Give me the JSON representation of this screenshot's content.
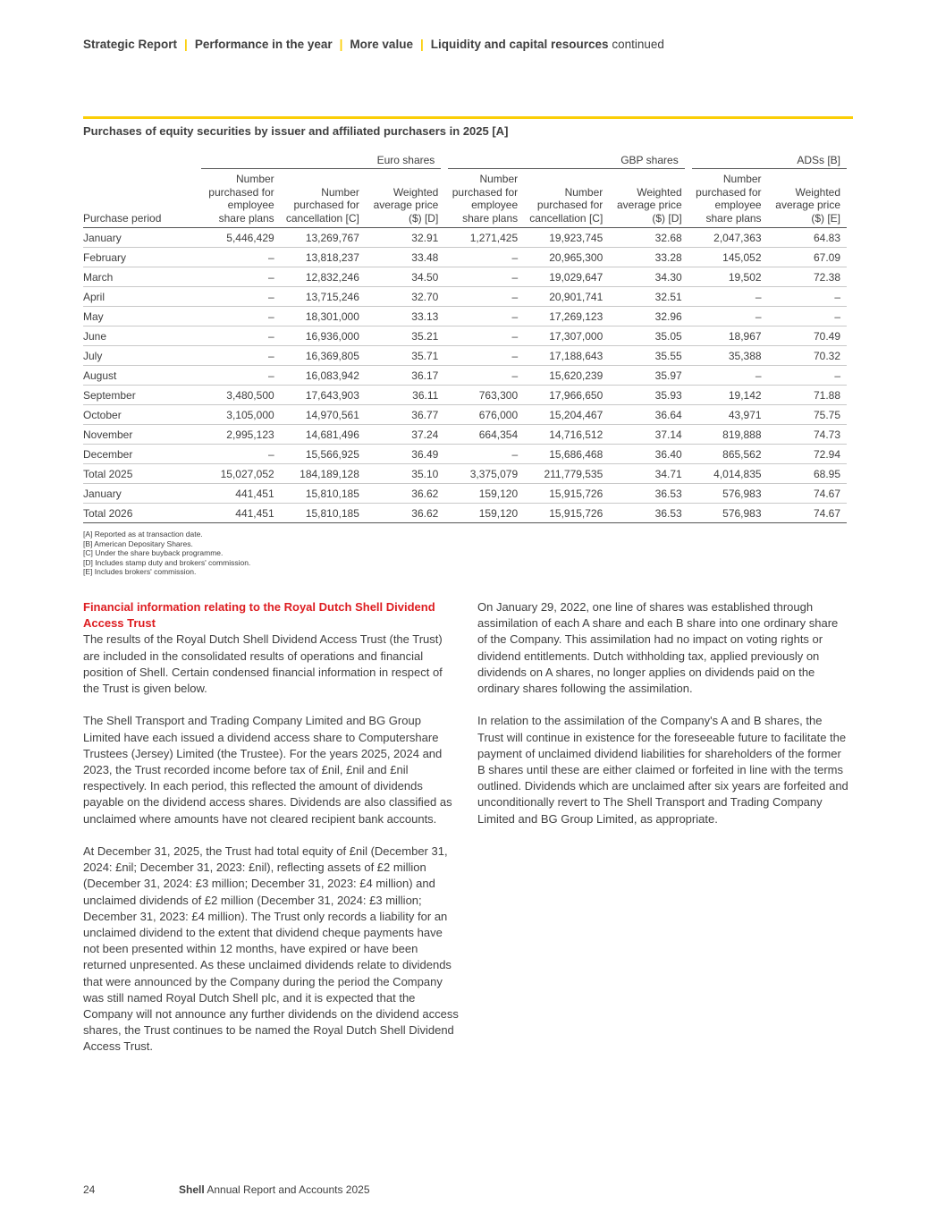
{
  "header": {
    "breadcrumbs": [
      "Strategic Report",
      "Performance in the year",
      "More value",
      "Liquidity and capital resources"
    ],
    "suffix": "continued"
  },
  "accent_color": "#fbce07",
  "table": {
    "title": "Purchases of equity securities by issuer and affiliated purchasers in 2025 [A]",
    "groups": [
      "Euro shares",
      "GBP shares",
      "ADSs [B]"
    ],
    "columns": [
      "Purchase period",
      "Number purchased for employee share plans",
      "Number purchased for cancellation [C]",
      "Weighted average price ($) [D]",
      "Number purchased for employee share plans",
      "Number purchased for cancellation [C]",
      "Weighted average price ($) [D]",
      "Number purchased for employee share plans",
      "Weighted average price ($) [E]"
    ],
    "rows": [
      [
        "January",
        "5,446,429",
        "13,269,767",
        "32.91",
        "1,271,425",
        "19,923,745",
        "32.68",
        "2,047,363",
        "64.83"
      ],
      [
        "February",
        "–",
        "13,818,237",
        "33.48",
        "–",
        "20,965,300",
        "33.28",
        "145,052",
        "67.09"
      ],
      [
        "March",
        "–",
        "12,832,246",
        "34.50",
        "–",
        "19,029,647",
        "34.30",
        "19,502",
        "72.38"
      ],
      [
        "April",
        "–",
        "13,715,246",
        "32.70",
        "–",
        "20,901,741",
        "32.51",
        "–",
        "–"
      ],
      [
        "May",
        "–",
        "18,301,000",
        "33.13",
        "–",
        "17,269,123",
        "32.96",
        "–",
        "–"
      ],
      [
        "June",
        "–",
        "16,936,000",
        "35.21",
        "–",
        "17,307,000",
        "35.05",
        "18,967",
        "70.49"
      ],
      [
        "July",
        "–",
        "16,369,805",
        "35.71",
        "–",
        "17,188,643",
        "35.55",
        "35,388",
        "70.32"
      ],
      [
        "August",
        "–",
        "16,083,942",
        "36.17",
        "–",
        "15,620,239",
        "35.97",
        "–",
        "–"
      ],
      [
        "September",
        "3,480,500",
        "17,643,903",
        "36.11",
        "763,300",
        "17,966,650",
        "35.93",
        "19,142",
        "71.88"
      ],
      [
        "October",
        "3,105,000",
        "14,970,561",
        "36.77",
        "676,000",
        "15,204,467",
        "36.64",
        "43,971",
        "75.75"
      ],
      [
        "November",
        "2,995,123",
        "14,681,496",
        "37.24",
        "664,354",
        "14,716,512",
        "37.14",
        "819,888",
        "74.73"
      ],
      [
        "December",
        "–",
        "15,566,925",
        "36.49",
        "–",
        "15,686,468",
        "36.40",
        "865,562",
        "72.94"
      ],
      [
        "Total 2025",
        "15,027,052",
        "184,189,128",
        "35.10",
        "3,375,079",
        "211,779,535",
        "34.71",
        "4,014,835",
        "68.95"
      ],
      [
        "January",
        "441,451",
        "15,810,185",
        "36.62",
        "159,120",
        "15,915,726",
        "36.53",
        "576,983",
        "74.67"
      ],
      [
        "Total 2026",
        "441,451",
        "15,810,185",
        "36.62",
        "159,120",
        "15,915,726",
        "36.53",
        "576,983",
        "74.67"
      ]
    ],
    "notes": [
      "[A]  Reported as at transaction date.",
      "[B]  American Depositary Shares.",
      "[C]  Under the share buyback programme.",
      "[D]  Includes stamp duty and brokers' commission.",
      "[E]  Includes brokers' commission."
    ]
  },
  "left": {
    "heading": "Financial information relating to the Royal Dutch Shell Dividend Access Trust",
    "paragraphs": [
      "The results of the Royal Dutch Shell Dividend Access Trust (the Trust) are included in the consolidated results of operations and financial position of Shell. Certain condensed financial information in respect of the Trust is given below.",
      "The Shell Transport and Trading Company Limited and BG Group Limited have each issued a dividend access share to Computershare Trustees (Jersey) Limited (the Trustee). For the years 2025, 2024 and 2023, the Trust recorded income before tax of £nil, £nil and £nil respectively. In each period, this reflected the amount of dividends payable on the dividend access shares. Dividends are also classified as unclaimed where amounts have not cleared recipient bank accounts.",
      "At December 31, 2025, the Trust had total equity of £nil (December 31, 2024: £nil; December 31, 2023: £nil), reflecting assets of £2 million (December 31, 2024: £3 million; December 31, 2023: £4 million) and unclaimed dividends of £2 million (December 31, 2024: £3 million; December 31, 2023: £4 million). The Trust only records a liability for an unclaimed dividend to the extent that dividend cheque payments have not been presented within 12 months, have expired or have been returned unpresented. As these unclaimed dividends relate to dividends that were announced by the Company during the period the Company was still named Royal Dutch Shell plc, and it is expected that the Company will not announce any further dividends on the dividend access shares, the Trust continues to be named the Royal Dutch Shell Dividend Access Trust."
    ]
  },
  "right": {
    "paragraphs": [
      "On January 29, 2022, one line of shares was established through assimilation of each A share and each B share into one ordinary share of the Company. This assimilation had no impact on voting rights or dividend entitlements. Dutch withholding tax, applied previously on dividends on A shares, no longer applies on dividends paid on the ordinary shares following the assimilation.",
      "In relation to the assimilation of the Company's A and B shares, the Trust will continue in existence for the foreseeable future to facilitate the payment of unclaimed dividend liabilities for shareholders of the former B shares until these are either claimed or forfeited in line with the terms outlined. Dividends which are unclaimed after six years are forfeited and unconditionally revert to The Shell Transport and Trading Company Limited and BG Group Limited, as appropriate."
    ]
  },
  "footer": {
    "page": "24",
    "brand": "Shell",
    "title": "Annual Report and Accounts 2025"
  }
}
